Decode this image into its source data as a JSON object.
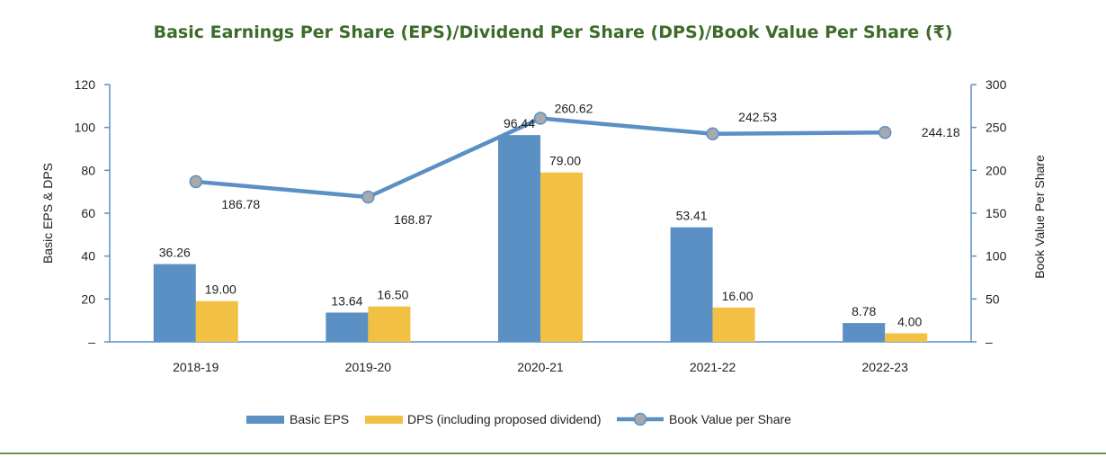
{
  "colors": {
    "title": "#3d6b2a",
    "eps": "#5b90c4",
    "dps": "#f2c042",
    "line": "#5b90c4",
    "marker": "#a7a9ac",
    "axis": "#5b90c4",
    "bottom_rule": "#3d6b2a"
  },
  "chart_data": {
    "type": "bar",
    "title": "Basic Earnings Per Share (EPS)/Dividend Per Share (DPS)/Book Value Per Share (₹)",
    "categories": [
      "2018-19",
      "2019-20",
      "2020-21",
      "2021-22",
      "2022-23"
    ],
    "ylabel": "Basic EPS & DPS",
    "y2label": "Book Value Per Share",
    "ylim": [
      0,
      120
    ],
    "y2lim": [
      0,
      300
    ],
    "yticks": [
      0,
      20,
      40,
      60,
      80,
      100,
      120
    ],
    "yticklabels": [
      "–",
      "20",
      "40",
      "60",
      "80",
      "100",
      "120"
    ],
    "y2ticks": [
      0,
      50,
      100,
      150,
      200,
      250,
      300
    ],
    "y2ticklabels": [
      "–",
      "50",
      "100",
      "150",
      "200",
      "250",
      "300"
    ],
    "grid": false,
    "legend_position": "bottom",
    "series": [
      {
        "name": "Basic EPS",
        "type": "bar",
        "axis": "left",
        "values": [
          36.26,
          13.64,
          96.44,
          53.41,
          8.78
        ],
        "labels": [
          "36.26",
          "13.64",
          "96.44",
          "53.41",
          "8.78"
        ]
      },
      {
        "name": "DPS (including proposed dividend)",
        "type": "bar",
        "axis": "left",
        "values": [
          19.0,
          16.5,
          79.0,
          16.0,
          4.0
        ],
        "labels": [
          "19.00",
          "16.50",
          "79.00",
          "16.00",
          "4.00"
        ]
      },
      {
        "name": "Book Value per Share",
        "type": "line",
        "axis": "right",
        "values": [
          186.78,
          168.87,
          260.62,
          242.53,
          244.18
        ],
        "labels": [
          "186.78",
          "168.87",
          "260.62",
          "242.53",
          "244.18"
        ]
      }
    ]
  }
}
